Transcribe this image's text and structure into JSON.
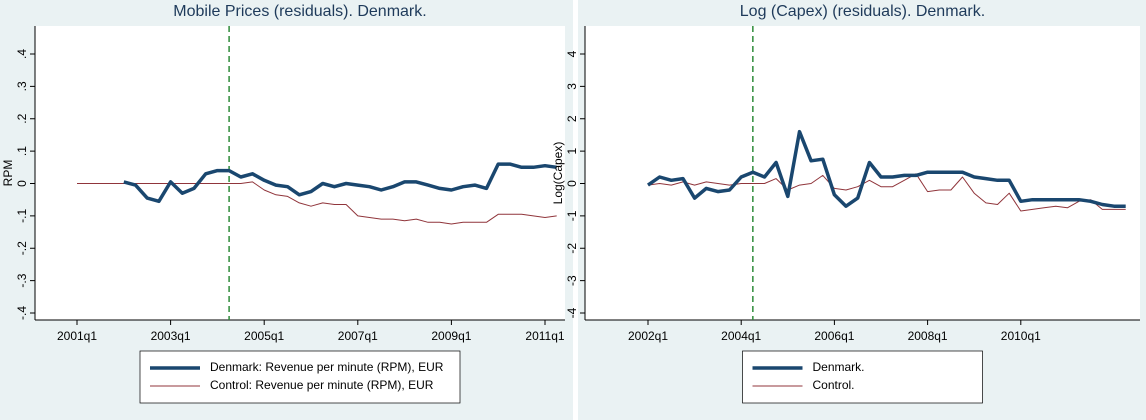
{
  "chart_data": [
    {
      "type": "line",
      "title": "Mobile Prices (residuals). Denmark.",
      "y_label": "RPM",
      "categories": [
        "2001q1",
        "2001q2",
        "2001q3",
        "2001q4",
        "2002q1",
        "2002q2",
        "2002q3",
        "2002q4",
        "2003q1",
        "2003q2",
        "2003q3",
        "2003q4",
        "2004q1",
        "2004q2",
        "2004q3",
        "2004q4",
        "2005q1",
        "2005q2",
        "2005q3",
        "2005q4",
        "2006q1",
        "2006q2",
        "2006q3",
        "2006q4",
        "2007q1",
        "2007q2",
        "2007q3",
        "2007q4",
        "2008q1",
        "2008q2",
        "2008q3",
        "2008q4",
        "2009q1",
        "2009q2",
        "2009q3",
        "2009q4",
        "2010q1",
        "2010q2",
        "2010q3",
        "2010q4",
        "2011q1",
        "2011q2"
      ],
      "xticks": [
        "2001q1",
        "2003q1",
        "2005q1",
        "2007q1",
        "2009q1",
        "2011q1"
      ],
      "xline": "2004q2",
      "ylim": [
        -0.4,
        0.4
      ],
      "yticks": [
        {
          "value": -0.4,
          "label": "-.4"
        },
        {
          "value": -0.3,
          "label": "-.3"
        },
        {
          "value": -0.2,
          "label": "-.2"
        },
        {
          "value": -0.1,
          "label": "-.1"
        },
        0,
        {
          "value": 0.1,
          "label": ".1"
        },
        {
          "value": 0.2,
          "label": ".2"
        },
        {
          "value": 0.3,
          "label": ".3"
        },
        {
          "value": 0.4,
          "label": ".4"
        }
      ],
      "series": [
        {
          "name": "Denmark: Revenue per minute (RPM), EUR",
          "color": "#1a476f",
          "width": 3.5,
          "values": [
            null,
            null,
            null,
            null,
            0.005,
            -0.005,
            -0.045,
            -0.055,
            0.005,
            -0.03,
            -0.015,
            0.03,
            0.04,
            0.04,
            0.02,
            0.03,
            0.01,
            -0.005,
            -0.01,
            -0.035,
            -0.025,
            0,
            -0.01,
            0,
            -0.005,
            -0.01,
            -0.02,
            -0.01,
            0.005,
            0.005,
            -0.005,
            -0.015,
            -0.02,
            -0.01,
            -0.005,
            -0.015,
            0.06,
            0.06,
            0.05,
            0.05,
            0.055,
            0.05
          ]
        },
        {
          "name": "Control: Revenue per minute (RPM), EUR",
          "color": "#90353b",
          "width": 1,
          "values": [
            0,
            0,
            0,
            0,
            0,
            0,
            0,
            0,
            0,
            0,
            0,
            0,
            0,
            0,
            0,
            0.005,
            -0.02,
            -0.035,
            -0.04,
            -0.06,
            -0.07,
            -0.06,
            -0.065,
            -0.065,
            -0.1,
            -0.105,
            -0.11,
            -0.11,
            -0.115,
            -0.11,
            -0.12,
            -0.12,
            -0.125,
            -0.12,
            -0.12,
            -0.12,
            -0.095,
            -0.095,
            -0.095,
            -0.1,
            -0.105,
            -0.1
          ]
        }
      ]
    },
    {
      "type": "line",
      "title": "Log (Capex) (residuals). Denmark.",
      "y_label": "Log(Capex)",
      "categories": [
        "2002q1",
        "2002q2",
        "2002q3",
        "2002q4",
        "2003q1",
        "2003q2",
        "2003q3",
        "2003q4",
        "2004q1",
        "2004q2",
        "2004q3",
        "2004q4",
        "2005q1",
        "2005q2",
        "2005q3",
        "2005q4",
        "2006q1",
        "2006q2",
        "2006q3",
        "2006q4",
        "2007q1",
        "2007q2",
        "2007q3",
        "2007q4",
        "2008q1",
        "2008q2",
        "2008q3",
        "2008q4",
        "2009q1",
        "2009q2",
        "2009q3",
        "2009q4",
        "2010q1",
        "2010q2",
        "2010q3",
        "2010q4",
        "2011q1",
        "2011q2",
        "2011q3",
        "2011q4",
        "2012q1",
        "2012q2"
      ],
      "xticks": [
        "2002q1",
        "2004q1",
        "2006q1",
        "2008q1",
        "2010q1"
      ],
      "xline": "2004q2",
      "ylim": [
        -4,
        4
      ],
      "yticks": [
        -4,
        -3,
        -2,
        -1,
        0,
        1,
        2,
        3,
        4
      ],
      "series": [
        {
          "name": "Denmark.",
          "color": "#1a476f",
          "width": 3.5,
          "values": [
            -0.05,
            0.2,
            0.1,
            0.15,
            -0.45,
            -0.15,
            -0.25,
            -0.2,
            0.2,
            0.35,
            0.2,
            0.65,
            -0.4,
            1.6,
            0.7,
            0.75,
            -0.35,
            -0.7,
            -0.45,
            0.65,
            0.2,
            0.2,
            0.25,
            0.25,
            0.35,
            0.35,
            0.35,
            0.35,
            0.2,
            0.15,
            0.1,
            0.1,
            -0.55,
            -0.5,
            -0.5,
            -0.5,
            -0.5,
            -0.5,
            -0.55,
            -0.65,
            -0.7,
            -0.7
          ]
        },
        {
          "name": "Control.",
          "color": "#90353b",
          "width": 1,
          "values": [
            -0.05,
            0,
            -0.05,
            0.05,
            -0.05,
            0.05,
            0,
            -0.05,
            0,
            0,
            0,
            0.15,
            -0.2,
            -0.05,
            0,
            0.25,
            -0.15,
            -0.2,
            -0.1,
            0.1,
            -0.1,
            -0.1,
            0.1,
            0.3,
            -0.25,
            -0.2,
            -0.2,
            0.2,
            -0.3,
            -0.6,
            -0.65,
            -0.3,
            -0.85,
            -0.8,
            -0.75,
            -0.7,
            -0.75,
            -0.55,
            -0.5,
            -0.8,
            -0.8,
            -0.8
          ]
        }
      ]
    }
  ]
}
